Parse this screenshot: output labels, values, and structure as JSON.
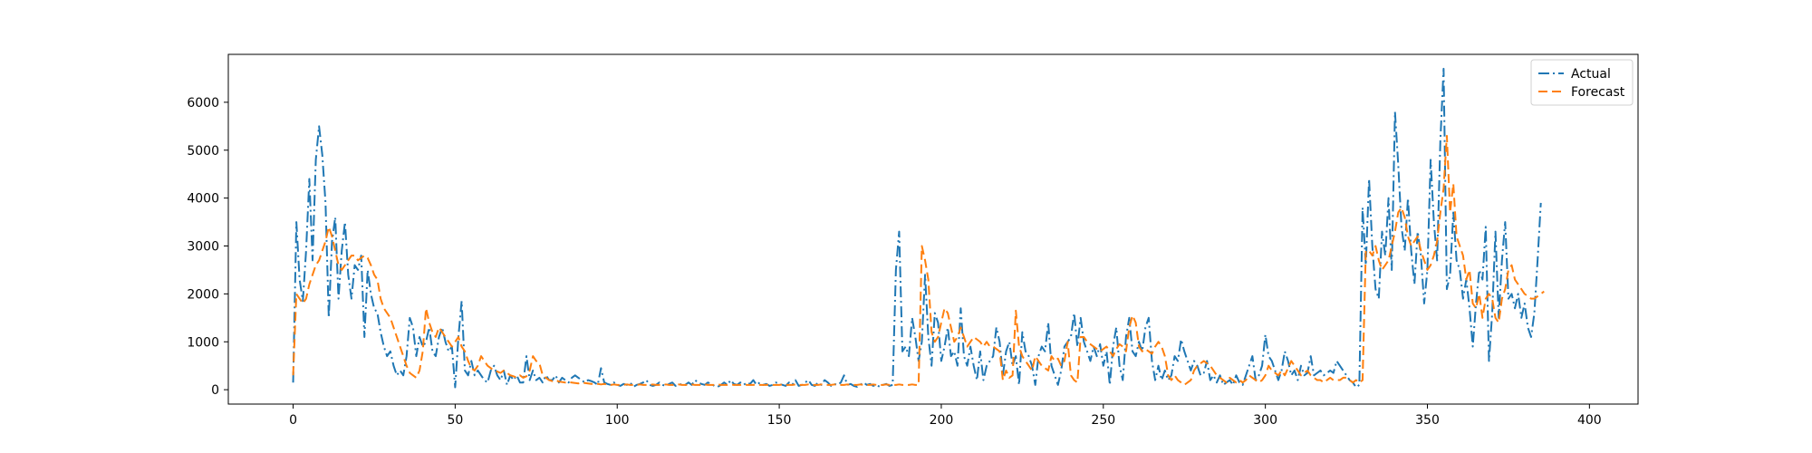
{
  "chart_data": {
    "type": "line",
    "title": "",
    "xlabel": "",
    "ylabel": "",
    "xlim": [
      -20,
      415
    ],
    "ylim": [
      -300,
      7000
    ],
    "xticks": [
      0,
      50,
      100,
      150,
      200,
      250,
      300,
      350,
      400
    ],
    "yticks": [
      0,
      1000,
      2000,
      3000,
      4000,
      5000,
      6000
    ],
    "grid": false,
    "legend_position": "top-right",
    "series": [
      {
        "name": "Actual",
        "color": "#1f77b4",
        "dash": "dash-dot",
        "values": [
          150,
          3500,
          2300,
          1850,
          2900,
          4400,
          2700,
          4800,
          5500,
          4900,
          3900,
          1500,
          3100,
          3600,
          1900,
          2900,
          3500,
          2400,
          1900,
          2600,
          2500,
          2800,
          1100,
          2500,
          2000,
          1700,
          1600,
          1200,
          900,
          700,
          800,
          500,
          300,
          400,
          300,
          700,
          1500,
          1300,
          700,
          1100,
          900,
          1000,
          1300,
          800,
          700,
          1100,
          1300,
          1000,
          800,
          900,
          50,
          1100,
          1850,
          400,
          300,
          600,
          300,
          400,
          300,
          200,
          150,
          400,
          500,
          300,
          200,
          400,
          100,
          300,
          200,
          300,
          150,
          150,
          700,
          200,
          400,
          200,
          250,
          150,
          300,
          200,
          200,
          300,
          150,
          250,
          200,
          150,
          250,
          300,
          250,
          200,
          150,
          200,
          180,
          150,
          100,
          450,
          150,
          120,
          100,
          150,
          100,
          80,
          120,
          100,
          150,
          60,
          100,
          120,
          150,
          200,
          100,
          80,
          100,
          150,
          100,
          80,
          120,
          150,
          80,
          100,
          120,
          100,
          150,
          100,
          200,
          150,
          120,
          100,
          150,
          120,
          80,
          60,
          100,
          150,
          100,
          200,
          120,
          100,
          150,
          100,
          150,
          120,
          200,
          100,
          150,
          100,
          120,
          80,
          100,
          150,
          120,
          100,
          80,
          150,
          100,
          200,
          80,
          100,
          150,
          200,
          100,
          80,
          150,
          100,
          200,
          150,
          80,
          120,
          100,
          150,
          300,
          100,
          120,
          80,
          60,
          100,
          150,
          100,
          120,
          80,
          100,
          60,
          100,
          120,
          80,
          100,
          2500,
          3300,
          800,
          900,
          700,
          1500,
          1100,
          600,
          1000,
          2400,
          1100,
          500,
          1600,
          1400,
          600,
          900,
          1300,
          700,
          800,
          500,
          1700,
          700,
          500,
          900,
          500,
          200,
          800,
          200,
          500,
          600,
          700,
          1300,
          1000,
          300,
          800,
          1000,
          500,
          700,
          100,
          1200,
          800,
          700,
          500,
          100,
          700,
          900,
          800,
          1400,
          500,
          300,
          100,
          400,
          900,
          1000,
          1100,
          1600,
          900,
          1500,
          1000,
          800,
          600,
          900,
          700,
          950,
          500,
          800,
          100,
          900,
          1300,
          500,
          200,
          1100,
          1500,
          800,
          700,
          1000,
          800,
          1300,
          1500,
          600,
          200,
          500,
          200,
          400,
          200,
          300,
          700,
          600,
          1050,
          800,
          600,
          400,
          600,
          500,
          300,
          350,
          600,
          200,
          300,
          150,
          300,
          100,
          150,
          200,
          100,
          300,
          150,
          100,
          300,
          500,
          700,
          200,
          300,
          500,
          1150,
          700,
          600,
          400,
          200,
          400,
          800,
          600,
          300,
          400,
          200,
          500,
          300,
          350,
          700,
          300,
          350,
          400,
          300,
          350,
          400,
          350,
          600,
          500,
          400,
          300,
          200,
          150,
          50,
          100,
          3800,
          2600,
          4400,
          3000,
          2100,
          1900,
          3300,
          2800,
          4000,
          2500,
          5800,
          4700,
          3400,
          2900,
          4000,
          2900,
          2200,
          3300,
          2800,
          1800,
          2500,
          4800,
          3500,
          2700,
          5200,
          6700,
          2100,
          2400,
          3700,
          2700,
          2500,
          1900,
          2300,
          1700,
          900,
          1800,
          2500,
          2300,
          3400,
          600,
          1600,
          3300,
          1500,
          2700,
          3500,
          1900,
          2000,
          1700,
          2000,
          1500,
          1800,
          1300,
          1100,
          1600,
          2700,
          3900
        ]
      },
      {
        "name": "Forecast",
        "color": "#ff7f0e",
        "dash": "dashed",
        "values": [
          300,
          2000,
          1900,
          1800,
          1900,
          2200,
          2400,
          2600,
          2700,
          2900,
          3100,
          3400,
          3200,
          2900,
          2600,
          2500,
          2600,
          2700,
          2800,
          2800,
          2700,
          2750,
          2800,
          2750,
          2600,
          2400,
          2300,
          1900,
          1700,
          1600,
          1500,
          1300,
          1100,
          900,
          700,
          500,
          350,
          300,
          250,
          400,
          800,
          1700,
          1400,
          1200,
          1100,
          1300,
          1200,
          1100,
          1000,
          900,
          1000,
          1100,
          900,
          800,
          600,
          450,
          400,
          500,
          700,
          600,
          500,
          450,
          400,
          380,
          350,
          400,
          350,
          300,
          280,
          250,
          300,
          250,
          280,
          400,
          700,
          600,
          550,
          300,
          250,
          200,
          180,
          200,
          170,
          160,
          150,
          160,
          150,
          140,
          130,
          150,
          140,
          130,
          120,
          130,
          120,
          110,
          120,
          110,
          100,
          110,
          100,
          100,
          100,
          110,
          100,
          100,
          100,
          110,
          100,
          100,
          100,
          110,
          100,
          100,
          100,
          110,
          100,
          100,
          100,
          110,
          100,
          100,
          100,
          110,
          100,
          100,
          100,
          110,
          100,
          100,
          100,
          110,
          100,
          100,
          100,
          110,
          100,
          100,
          100,
          110,
          100,
          100,
          100,
          110,
          100,
          100,
          100,
          110,
          100,
          100,
          100,
          110,
          100,
          100,
          100,
          110,
          100,
          100,
          100,
          110,
          100,
          100,
          100,
          110,
          100,
          100,
          100,
          110,
          100,
          100,
          100,
          110,
          100,
          100,
          100,
          110,
          100,
          100,
          100,
          110,
          100,
          100,
          100,
          110,
          100,
          100,
          100,
          110,
          100,
          100,
          100,
          110,
          100,
          100,
          3000,
          2700,
          2300,
          1200,
          1000,
          1100,
          1400,
          1700,
          1600,
          1300,
          1000,
          1100,
          1300,
          1100,
          900,
          1000,
          1100,
          1050,
          1000,
          900,
          1000,
          900,
          900,
          850,
          800,
          200,
          400,
          250,
          300,
          1650,
          900,
          700,
          600,
          500,
          400,
          700,
          600,
          500,
          450,
          400,
          700,
          600,
          650,
          500,
          600,
          1000,
          300,
          200,
          150,
          1100,
          1100,
          1000,
          950,
          900,
          850,
          800,
          850,
          900,
          800,
          700,
          850,
          950,
          900,
          800,
          1300,
          1550,
          1400,
          900,
          800,
          850,
          800,
          750,
          900,
          1000,
          900,
          700,
          300,
          200,
          300,
          200,
          150,
          100,
          150,
          200,
          400,
          500,
          550,
          600,
          550,
          500,
          400,
          300,
          250,
          200,
          150,
          250,
          200,
          150,
          200,
          150,
          200,
          300,
          250,
          200,
          150,
          200,
          300,
          500,
          400,
          350,
          300,
          400,
          300,
          450,
          600,
          500,
          400,
          300,
          350,
          400,
          300,
          250,
          200,
          200,
          150,
          200,
          250,
          200,
          200,
          200,
          250,
          250,
          200,
          150,
          200,
          150,
          200,
          2900,
          2900,
          2800,
          3000,
          2700,
          2500,
          2600,
          2700,
          3000,
          3300,
          3700,
          3800,
          3600,
          3200,
          3000,
          3100,
          3200,
          2900,
          2700,
          2500,
          2600,
          2800,
          3100,
          3700,
          4200,
          5300,
          3700,
          4300,
          3200,
          3000,
          2800,
          2300,
          2500,
          1800,
          1700,
          2000,
          1500,
          1900,
          2000,
          1900,
          1500,
          1400,
          1900,
          2100,
          2500,
          2600,
          2300,
          2200,
          2100,
          2000,
          1950,
          1900,
          1900,
          1950,
          2000,
          2050
        ]
      }
    ]
  }
}
